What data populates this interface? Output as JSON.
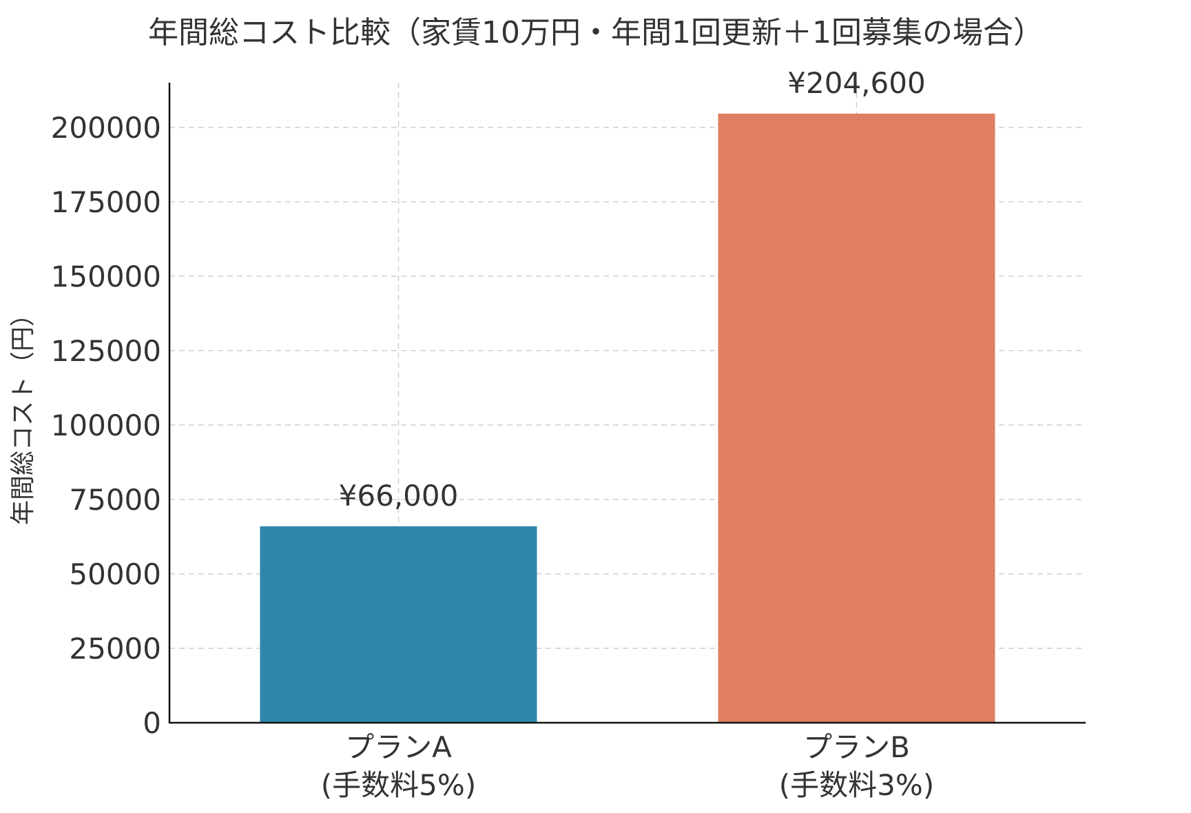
{
  "chart_data": {
    "type": "bar",
    "title": "年間総コスト比較（家賃10万円・年間1回更新＋1回募集の場合）",
    "xlabel": "",
    "ylabel": "年間総コスト（円）",
    "ylim": [
      0,
      215000
    ],
    "yticks": [
      0,
      25000,
      50000,
      75000,
      100000,
      125000,
      150000,
      175000,
      200000
    ],
    "ytick_labels": [
      "0",
      "25000",
      "50000",
      "75000",
      "100000",
      "125000",
      "150000",
      "175000",
      "200000"
    ],
    "grid": true,
    "categories": [
      {
        "line1": "プランA",
        "line2": "(手数料5%)"
      },
      {
        "line1": "プランB",
        "line2": "(手数料3%)"
      }
    ],
    "values": [
      66000,
      204600
    ],
    "data_labels": [
      "¥66,000",
      "¥204,600"
    ],
    "colors": [
      "#2e86ab",
      "#e07e61"
    ]
  }
}
